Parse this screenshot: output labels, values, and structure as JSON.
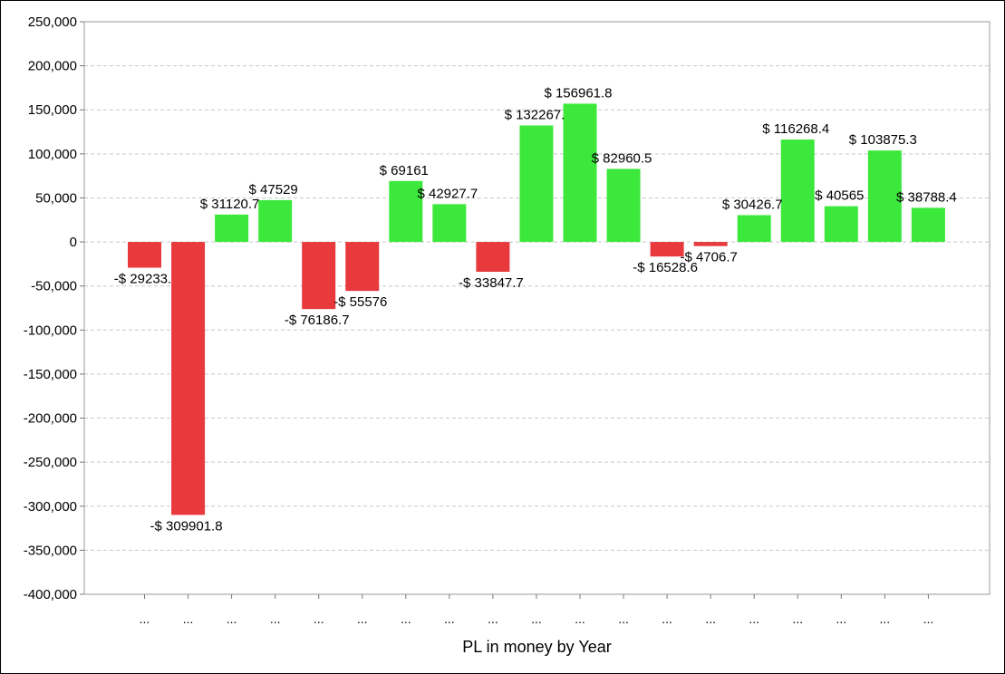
{
  "chart_data": {
    "type": "bar",
    "title": "",
    "xlabel": "PL in money by Year",
    "ylabel": "",
    "ylim": [
      -400000,
      250000
    ],
    "yticks": [
      250000,
      200000,
      150000,
      100000,
      50000,
      0,
      -50000,
      -100000,
      -150000,
      -200000,
      -250000,
      -300000,
      -350000,
      -400000
    ],
    "ytick_labels": [
      "250,000",
      "200,000",
      "150,000",
      "100,000",
      "50,000",
      "0",
      "-50,000",
      "-100,000",
      "-150,000",
      "-200,000",
      "-250,000",
      "-300,000",
      "-350,000",
      "-400,000"
    ],
    "grid": true,
    "legend": "none",
    "categories": [
      "...",
      "...",
      "...",
      "...",
      "...",
      "...",
      "...",
      "...",
      "...",
      "...",
      "...",
      "...",
      "...",
      "...",
      "...",
      "...",
      "...",
      "...",
      "..."
    ],
    "values": [
      -29233,
      -309901.8,
      31120.7,
      47529,
      -76186.7,
      -55576,
      69161,
      42927.7,
      -33847.7,
      132267,
      156961.8,
      82960.5,
      -16528.6,
      -4706.7,
      30426.7,
      116268.4,
      40565,
      103875.3,
      38788.4
    ],
    "data_labels": [
      "-$ 29233.",
      "-$ 309901.8",
      "$ 31120.7",
      "$ 47529",
      "-$ 76186.7",
      "-$ 55576",
      "$ 69161",
      "$ 42927.7",
      "-$ 33847.7",
      "$ 132267.",
      "$ 156961.8",
      "$ 82960.5",
      "-$ 16528.6",
      "-$ 4706.7",
      "$ 30426.7",
      "$ 116268.4",
      "$ 40565",
      "$ 103875.3",
      "$ 38788.4"
    ],
    "colors": {
      "positive": "#3de83d",
      "negative": "#e8393d",
      "grid": "#c8c8c8",
      "plot_border": "#999999"
    }
  }
}
